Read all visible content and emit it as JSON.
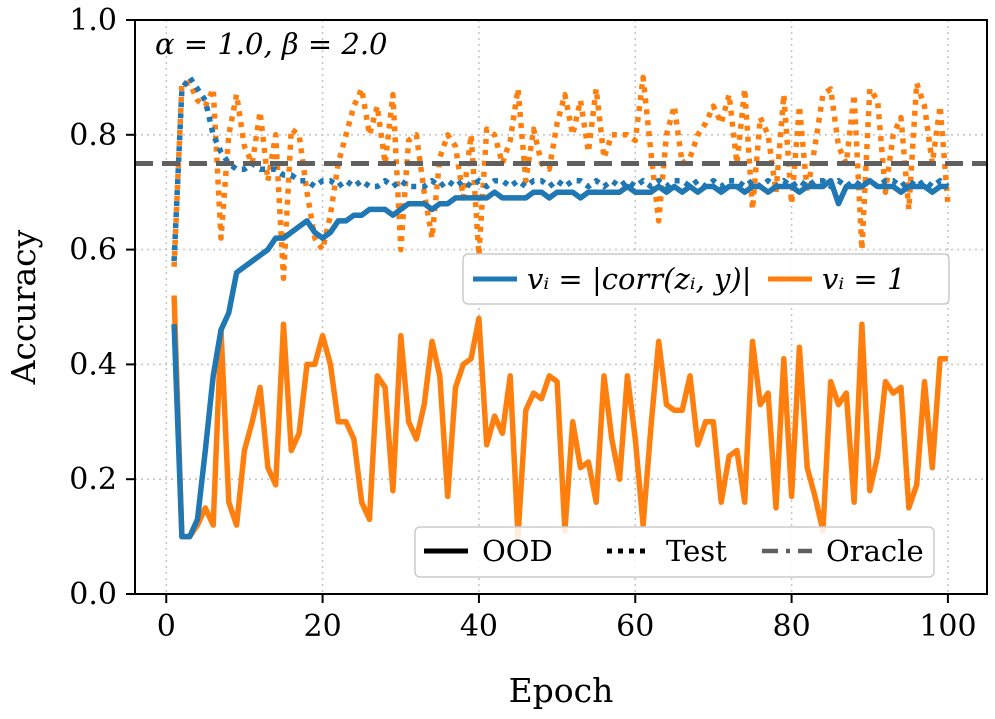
{
  "chart_data": {
    "type": "line",
    "annotation": "α = 1.0,  β = 2.0",
    "xlabel": "Epoch",
    "ylabel": "Accuracy",
    "xlim": [
      -4,
      105
    ],
    "ylim": [
      0.0,
      1.0
    ],
    "xticks": [
      0,
      20,
      40,
      60,
      80,
      100
    ],
    "yticks": [
      0.0,
      0.2,
      0.4,
      0.6,
      0.8,
      1.0
    ],
    "xtick_labels": [
      "0",
      "20",
      "40",
      "60",
      "80",
      "100"
    ],
    "ytick_labels": [
      "0.0",
      "0.2",
      "0.4",
      "0.6",
      "0.8",
      "1.0"
    ],
    "grid": true,
    "oracle": {
      "name": "Oracle",
      "value": 0.75,
      "color": "#606060"
    },
    "colors": {
      "corr": "#1f77b4",
      "ones": "#ff7f0e"
    },
    "legend_methods": [
      {
        "key": "corr",
        "label": "vᵢ = |corr(zᵢ, y)|"
      },
      {
        "key": "ones",
        "label": "vᵢ = 1"
      }
    ],
    "legend_styles": [
      {
        "style": "solid",
        "label": "OOD"
      },
      {
        "style": "dotted",
        "label": "Test"
      },
      {
        "style": "dashed",
        "label": "Oracle"
      }
    ],
    "x": [
      1,
      2,
      3,
      4,
      5,
      6,
      7,
      8,
      9,
      10,
      11,
      12,
      13,
      14,
      15,
      16,
      17,
      18,
      19,
      20,
      21,
      22,
      23,
      24,
      25,
      26,
      27,
      28,
      29,
      30,
      31,
      32,
      33,
      34,
      35,
      36,
      37,
      38,
      39,
      40,
      41,
      42,
      43,
      44,
      45,
      46,
      47,
      48,
      49,
      50,
      51,
      52,
      53,
      54,
      55,
      56,
      57,
      58,
      59,
      60,
      61,
      62,
      63,
      64,
      65,
      66,
      67,
      68,
      69,
      70,
      71,
      72,
      73,
      74,
      75,
      76,
      77,
      78,
      79,
      80,
      81,
      82,
      83,
      84,
      85,
      86,
      87,
      88,
      89,
      90,
      91,
      92,
      93,
      94,
      95,
      96,
      97,
      98,
      99,
      100
    ],
    "series": [
      {
        "name": "vᵢ = |corr(zᵢ, y)| — OOD",
        "method": "corr",
        "style": "solid",
        "values": [
          0.47,
          0.1,
          0.1,
          0.13,
          0.25,
          0.38,
          0.46,
          0.49,
          0.56,
          0.57,
          0.58,
          0.59,
          0.6,
          0.62,
          0.62,
          0.63,
          0.64,
          0.65,
          0.63,
          0.62,
          0.63,
          0.65,
          0.65,
          0.66,
          0.66,
          0.67,
          0.67,
          0.67,
          0.66,
          0.67,
          0.68,
          0.68,
          0.68,
          0.67,
          0.68,
          0.68,
          0.69,
          0.69,
          0.69,
          0.69,
          0.69,
          0.7,
          0.69,
          0.69,
          0.69,
          0.69,
          0.7,
          0.7,
          0.69,
          0.7,
          0.7,
          0.7,
          0.69,
          0.7,
          0.7,
          0.7,
          0.7,
          0.7,
          0.71,
          0.7,
          0.7,
          0.7,
          0.71,
          0.7,
          0.71,
          0.7,
          0.71,
          0.7,
          0.71,
          0.71,
          0.7,
          0.71,
          0.71,
          0.7,
          0.71,
          0.71,
          0.7,
          0.71,
          0.71,
          0.71,
          0.7,
          0.71,
          0.71,
          0.71,
          0.72,
          0.68,
          0.71,
          0.71,
          0.71,
          0.72,
          0.71,
          0.71,
          0.71,
          0.7,
          0.71,
          0.71,
          0.71,
          0.7,
          0.71,
          0.71
        ]
      },
      {
        "name": "vᵢ = |corr(zᵢ, y)| — Test",
        "method": "corr",
        "style": "dotted",
        "values": [
          0.58,
          0.88,
          0.9,
          0.88,
          0.86,
          0.8,
          0.77,
          0.75,
          0.74,
          0.74,
          0.75,
          0.74,
          0.74,
          0.74,
          0.73,
          0.73,
          0.72,
          0.72,
          0.71,
          0.72,
          0.72,
          0.71,
          0.72,
          0.71,
          0.72,
          0.71,
          0.71,
          0.72,
          0.71,
          0.72,
          0.71,
          0.71,
          0.71,
          0.72,
          0.71,
          0.72,
          0.71,
          0.72,
          0.71,
          0.72,
          0.71,
          0.72,
          0.72,
          0.71,
          0.72,
          0.71,
          0.72,
          0.72,
          0.71,
          0.72,
          0.71,
          0.72,
          0.72,
          0.71,
          0.72,
          0.71,
          0.72,
          0.71,
          0.72,
          0.71,
          0.72,
          0.71,
          0.72,
          0.71,
          0.72,
          0.72,
          0.71,
          0.72,
          0.71,
          0.72,
          0.71,
          0.72,
          0.72,
          0.71,
          0.72,
          0.71,
          0.72,
          0.71,
          0.72,
          0.71,
          0.72,
          0.71,
          0.72,
          0.72,
          0.71,
          0.72,
          0.71,
          0.72,
          0.71,
          0.72,
          0.71,
          0.72,
          0.72,
          0.71,
          0.72,
          0.71,
          0.72,
          0.71,
          0.72,
          0.71
        ]
      },
      {
        "name": "vᵢ = 1 — OOD",
        "method": "ones",
        "style": "solid",
        "values": [
          0.52,
          0.1,
          0.1,
          0.12,
          0.15,
          0.12,
          0.46,
          0.16,
          0.12,
          0.25,
          0.3,
          0.36,
          0.22,
          0.19,
          0.47,
          0.25,
          0.28,
          0.4,
          0.4,
          0.45,
          0.4,
          0.3,
          0.3,
          0.27,
          0.16,
          0.13,
          0.38,
          0.36,
          0.18,
          0.45,
          0.3,
          0.27,
          0.33,
          0.44,
          0.38,
          0.17,
          0.36,
          0.4,
          0.41,
          0.48,
          0.26,
          0.31,
          0.28,
          0.38,
          0.1,
          0.32,
          0.35,
          0.34,
          0.38,
          0.37,
          0.11,
          0.3,
          0.22,
          0.23,
          0.16,
          0.38,
          0.27,
          0.2,
          0.38,
          0.27,
          0.12,
          0.29,
          0.44,
          0.33,
          0.32,
          0.32,
          0.38,
          0.26,
          0.3,
          0.3,
          0.16,
          0.24,
          0.25,
          0.16,
          0.44,
          0.33,
          0.35,
          0.15,
          0.41,
          0.17,
          0.43,
          0.22,
          0.17,
          0.11,
          0.37,
          0.33,
          0.35,
          0.16,
          0.47,
          0.18,
          0.24,
          0.37,
          0.35,
          0.36,
          0.15,
          0.19,
          0.37,
          0.22,
          0.41,
          0.41
        ]
      },
      {
        "name": "vᵢ = 1 — Test",
        "method": "ones",
        "style": "dotted",
        "values": [
          0.57,
          0.89,
          0.89,
          0.86,
          0.85,
          0.88,
          0.62,
          0.8,
          0.87,
          0.78,
          0.75,
          0.84,
          0.72,
          0.8,
          0.55,
          0.81,
          0.8,
          0.7,
          0.62,
          0.6,
          0.66,
          0.75,
          0.8,
          0.85,
          0.88,
          0.8,
          0.85,
          0.75,
          0.87,
          0.6,
          0.79,
          0.8,
          0.7,
          0.62,
          0.76,
          0.8,
          0.78,
          0.69,
          0.8,
          0.59,
          0.81,
          0.8,
          0.75,
          0.79,
          0.88,
          0.72,
          0.81,
          0.75,
          0.74,
          0.82,
          0.87,
          0.8,
          0.86,
          0.77,
          0.88,
          0.76,
          0.8,
          0.8,
          0.8,
          0.79,
          0.9,
          0.77,
          0.65,
          0.8,
          0.85,
          0.75,
          0.76,
          0.8,
          0.82,
          0.85,
          0.82,
          0.87,
          0.75,
          0.88,
          0.67,
          0.83,
          0.8,
          0.7,
          0.87,
          0.68,
          0.85,
          0.7,
          0.78,
          0.87,
          0.88,
          0.78,
          0.75,
          0.87,
          0.6,
          0.88,
          0.86,
          0.7,
          0.8,
          0.83,
          0.67,
          0.89,
          0.85,
          0.75,
          0.85,
          0.68
        ]
      }
    ]
  }
}
